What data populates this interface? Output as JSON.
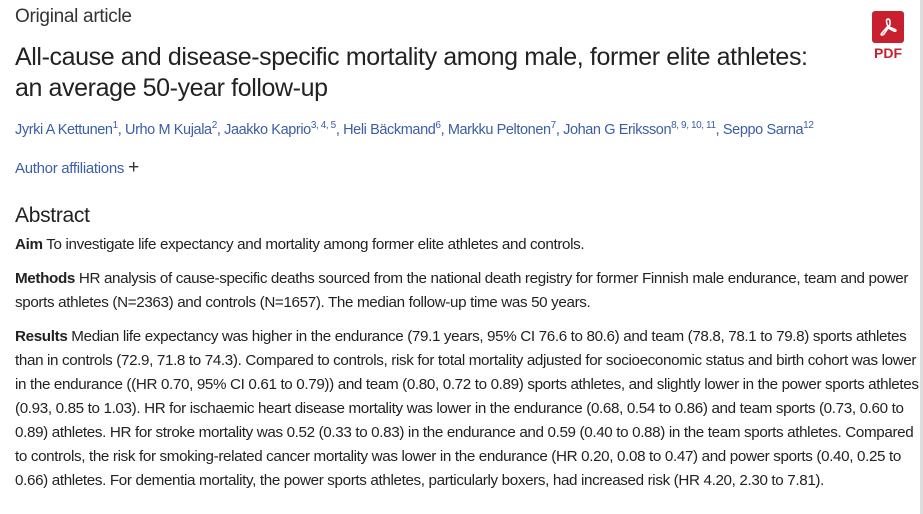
{
  "article_type": "Original article",
  "title": "All-cause and disease-specific mortality among male, former elite athletes: an average 50-year follow-up",
  "authors": [
    {
      "name": "Jyrki A Kettunen",
      "sup": "1"
    },
    {
      "name": "Urho M Kujala",
      "sup": "2"
    },
    {
      "name": "Jaakko Kaprio",
      "sup": "3, 4, 5"
    },
    {
      "name": "Heli Bäckmand",
      "sup": "6"
    },
    {
      "name": "Markku Peltonen",
      "sup": "7"
    },
    {
      "name": "Johan G Eriksson",
      "sup": "8, 9, 10, 11"
    },
    {
      "name": "Seppo Sarna",
      "sup": "12"
    }
  ],
  "author_affiliations": "Author affiliations",
  "pdf_label": "PDF",
  "abstract": {
    "heading": "Abstract",
    "sections": [
      {
        "label": "Aim",
        "text": " To investigate life expectancy and mortality among former elite athletes and controls."
      },
      {
        "label": "Methods",
        "text": " HR analysis of cause-specific deaths sourced from the national death registry for former Finnish male endurance, team and power sports athletes (N=2363) and controls (N=1657). The median follow-up time was 50 years."
      },
      {
        "label": "Results",
        "text": " Median life expectancy was higher in the endurance (79.1 years, 95% CI 76.6 to 80.6) and team (78.8, 78.1 to 79.8) sports athletes than in controls (72.9, 71.8 to 74.3). Compared to controls, risk for total mortality adjusted for socioeconomic status and birth cohort was lower in the endurance ((HR 0.70, 95% CI 0.61 to 0.79)) and team (0.80, 0.72 to 0.89) sports athletes, and slightly lower in the power sports athletes (0.93, 0.85 to 1.03). HR for ischaemic heart disease mortality was lower in the endurance (0.68, 0.54 to 0.86) and team sports (0.73, 0.60 to 0.89) athletes. HR for stroke mortality was 0.52 (0.33 to 0.83) in the endurance and 0.59 (0.40 to 0.88) in the team sports athletes. Compared to controls, the risk for smoking-related cancer mortality was lower in the endurance (HR 0.20, 0.08 to 0.47) and power sports (0.40, 0.25 to 0.66) athletes. For dementia mortality, the power sports athletes, particularly boxers, had increased risk (HR 4.20, 2.30 to 7.81)."
      }
    ]
  }
}
